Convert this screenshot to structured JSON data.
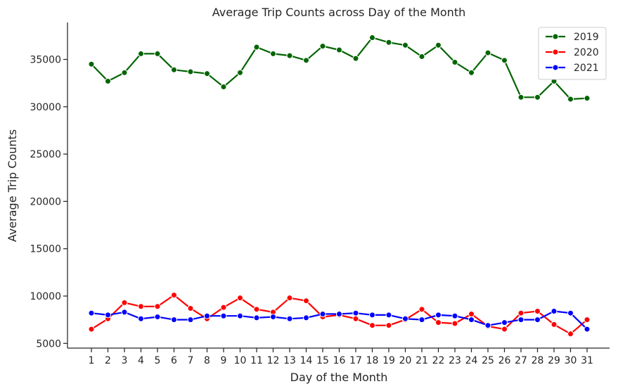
{
  "chart_data": {
    "type": "line",
    "title": "Average Trip Counts across Day of the Month",
    "xlabel": "Day of the Month",
    "ylabel": "Average Trip Counts",
    "x": [
      1,
      2,
      3,
      4,
      5,
      6,
      7,
      8,
      9,
      10,
      11,
      12,
      13,
      14,
      15,
      16,
      17,
      18,
      19,
      20,
      21,
      22,
      23,
      24,
      25,
      26,
      27,
      28,
      29,
      30,
      31
    ],
    "x_tick_labels": [
      "1",
      "2",
      "3",
      "4",
      "5",
      "6",
      "7",
      "8",
      "9",
      "10",
      "11",
      "12",
      "13",
      "14",
      "15",
      "16",
      "17",
      "18",
      "19",
      "20",
      "21",
      "22",
      "23",
      "24",
      "25",
      "26",
      "27",
      "28",
      "29",
      "30",
      "31"
    ],
    "ylim": [
      4500,
      38900
    ],
    "y_ticks": [
      5000,
      10000,
      15000,
      20000,
      25000,
      30000,
      35000
    ],
    "y_tick_labels": [
      "5000",
      "10000",
      "15000",
      "20000",
      "25000",
      "30000",
      "35000"
    ],
    "grid": false,
    "legend_position": "top-right",
    "series": [
      {
        "name": "2019",
        "color": "#006400",
        "values": [
          34500,
          32700,
          33600,
          35600,
          35600,
          33900,
          33700,
          33500,
          32100,
          33600,
          36300,
          35600,
          35400,
          34900,
          36400,
          36000,
          35100,
          37300,
          36800,
          36500,
          35300,
          36500,
          34700,
          33600,
          35700,
          34900,
          31000,
          31000,
          32700,
          30800,
          30900
        ]
      },
      {
        "name": "2020",
        "color": "#ff0000",
        "values": [
          6500,
          7600,
          9300,
          8900,
          8900,
          10100,
          8700,
          7600,
          8800,
          9800,
          8600,
          8300,
          9800,
          9500,
          7800,
          8000,
          7600,
          6900,
          6900,
          7500,
          8600,
          7200,
          7100,
          8100,
          6800,
          6500,
          8200,
          8400,
          7000,
          6000,
          7500
        ]
      },
      {
        "name": "2021",
        "color": "#0000ff",
        "values": [
          8200,
          8000,
          8300,
          7600,
          7800,
          7500,
          7500,
          7900,
          7900,
          7900,
          7700,
          7800,
          7600,
          7700,
          8100,
          8100,
          8200,
          8000,
          8000,
          7600,
          7500,
          8000,
          7900,
          7500,
          6900,
          7200,
          7500,
          7500,
          8400,
          8200,
          6500
        ]
      }
    ]
  }
}
